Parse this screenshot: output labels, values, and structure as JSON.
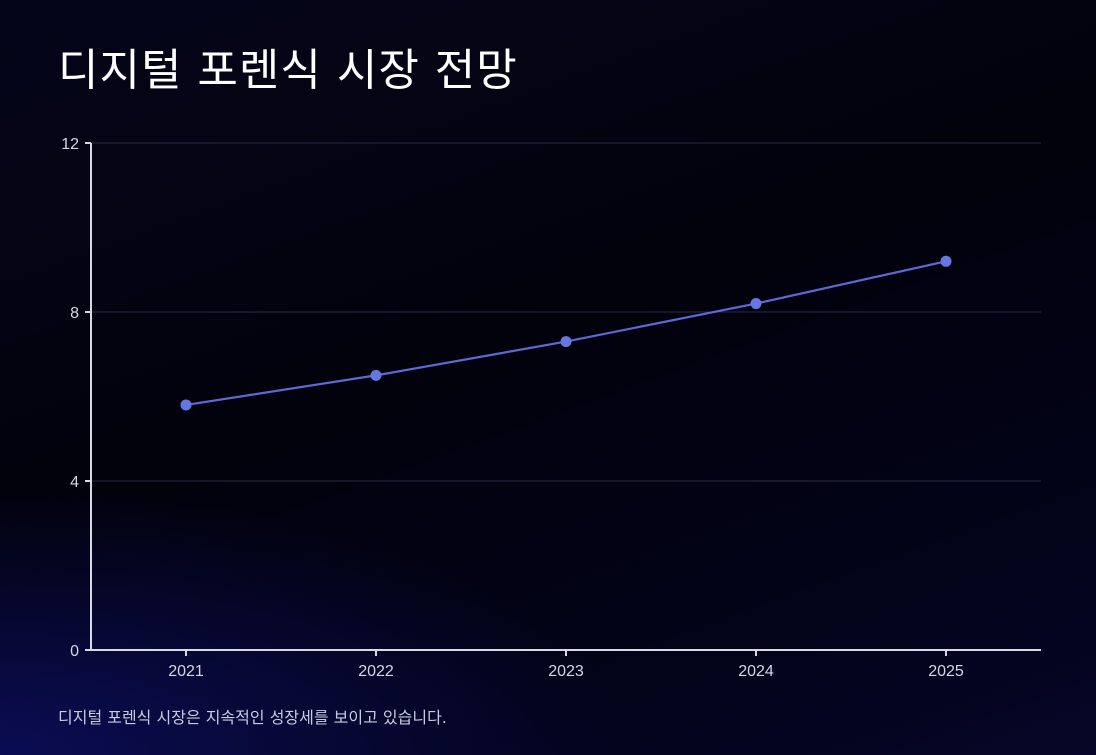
{
  "title": "디지털 포렌식 시장 전망",
  "caption": "디지털 포렌식 시장은 지속적인 성장세를 보이고 있습니다.",
  "colors": {
    "line": "#5b6ad6",
    "point": "#6677e0",
    "grid": "#2b2b45",
    "axis": "#d9d9e6",
    "tick_text": "#d6d6e4"
  },
  "chart_data": {
    "type": "line",
    "categories": [
      "2021",
      "2022",
      "2023",
      "2024",
      "2025"
    ],
    "values": [
      5.8,
      6.5,
      7.3,
      8.2,
      9.2
    ],
    "title": "",
    "xlabel": "",
    "ylabel": "",
    "ylim": [
      0,
      12
    ],
    "yticks": [
      "0",
      "4",
      "8",
      "12"
    ],
    "grid": true,
    "legend": "none"
  }
}
